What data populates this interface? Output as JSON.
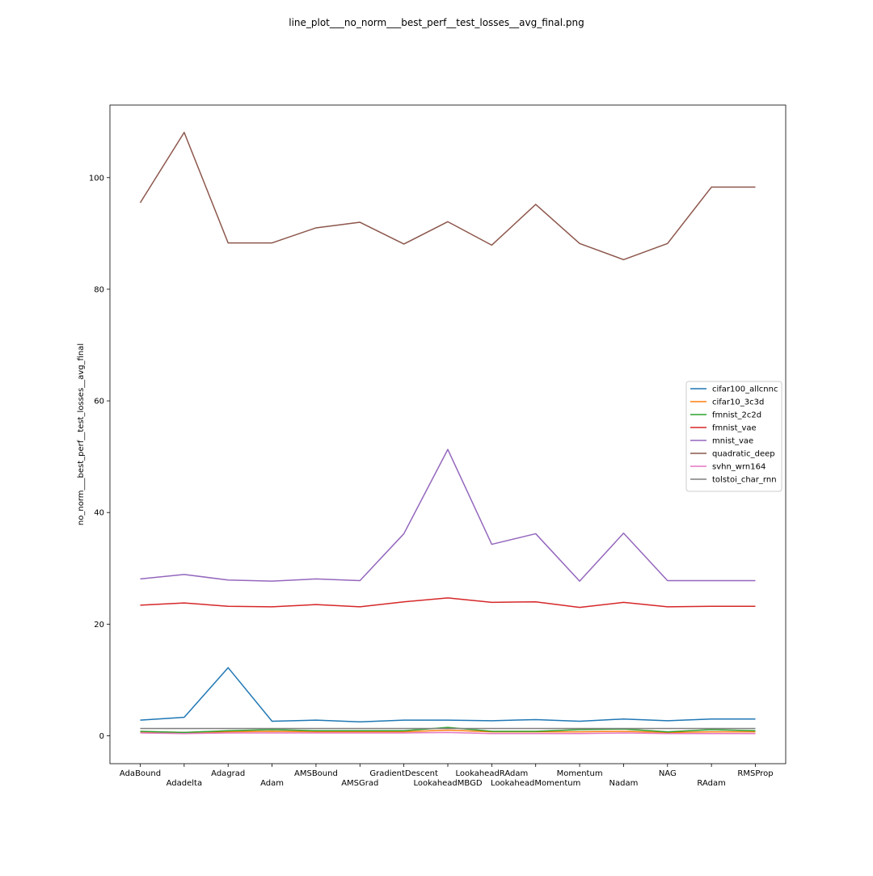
{
  "figure_title": "line_plot___no_norm___best_perf__test_losses__avg_final.png",
  "chart_data": {
    "type": "line",
    "title": "line_plot___no_norm___best_perf__test_losses__avg_final.png",
    "xlabel": "",
    "ylabel": "no_norm___best_perf__test_losses__avg_final",
    "ylim": [
      -5,
      113
    ],
    "yticks": [
      0,
      20,
      40,
      60,
      80,
      100
    ],
    "grid": false,
    "legend_position": "center-right",
    "categories": [
      "AdaBound",
      "Adadelta",
      "Adagrad",
      "Adam",
      "AMSBound",
      "AMSGrad",
      "GradientDescent",
      "LookaheadMBGD",
      "LookaheadRAdam",
      "LookaheadMomentum",
      "Momentum",
      "Nadam",
      "NAG",
      "RAdam",
      "RMSProp"
    ],
    "series": [
      {
        "name": "cifar100_allcnnc",
        "color": "#1f77b4",
        "values": [
          2.8,
          3.3,
          12.2,
          2.6,
          2.8,
          2.5,
          2.8,
          2.8,
          2.7,
          2.9,
          2.6,
          3.0,
          2.7,
          3.0,
          3.0
        ]
      },
      {
        "name": "cifar10_3c3d",
        "color": "#ff7f0e",
        "values": [
          0.7,
          0.6,
          0.7,
          0.8,
          0.7,
          0.7,
          0.7,
          1.0,
          0.7,
          0.7,
          0.7,
          0.8,
          0.6,
          0.7,
          0.7
        ]
      },
      {
        "name": "fmnist_2c2d",
        "color": "#2ca02c",
        "values": [
          0.8,
          0.6,
          0.9,
          1.1,
          0.9,
          0.9,
          0.9,
          1.5,
          0.8,
          0.8,
          1.1,
          1.2,
          0.7,
          1.1,
          0.9
        ]
      },
      {
        "name": "fmnist_vae",
        "color": "#d62728",
        "values": [
          23.4,
          23.8,
          23.2,
          23.1,
          23.5,
          23.1,
          24.0,
          24.7,
          23.9,
          24.0,
          23.0,
          23.9,
          23.1,
          23.2,
          23.2
        ]
      },
      {
        "name": "mnist_vae",
        "color": "#9467bd",
        "values": [
          28.1,
          28.9,
          27.9,
          27.7,
          28.1,
          27.8,
          36.2,
          51.3,
          34.3,
          36.2,
          27.7,
          36.3,
          27.8,
          27.8,
          27.8
        ]
      },
      {
        "name": "quadratic_deep",
        "color": "#8c564b",
        "values": [
          95.5,
          108.1,
          88.3,
          88.3,
          91.0,
          92.0,
          88.1,
          92.1,
          87.9,
          95.2,
          88.2,
          85.3,
          88.2,
          98.3,
          98.3
        ]
      },
      {
        "name": "svhn_wrn164",
        "color": "#e377c2",
        "values": [
          0.5,
          0.4,
          0.5,
          0.5,
          0.5,
          0.5,
          0.5,
          0.6,
          0.4,
          0.4,
          0.4,
          0.5,
          0.4,
          0.4,
          0.4
        ]
      },
      {
        "name": "tolstoi_char_rnn",
        "color": "#7f7f7f",
        "values": [
          1.3,
          1.3,
          1.3,
          1.3,
          1.3,
          1.3,
          1.3,
          1.3,
          1.3,
          1.3,
          1.3,
          1.3,
          1.3,
          1.3,
          1.3
        ]
      }
    ]
  }
}
